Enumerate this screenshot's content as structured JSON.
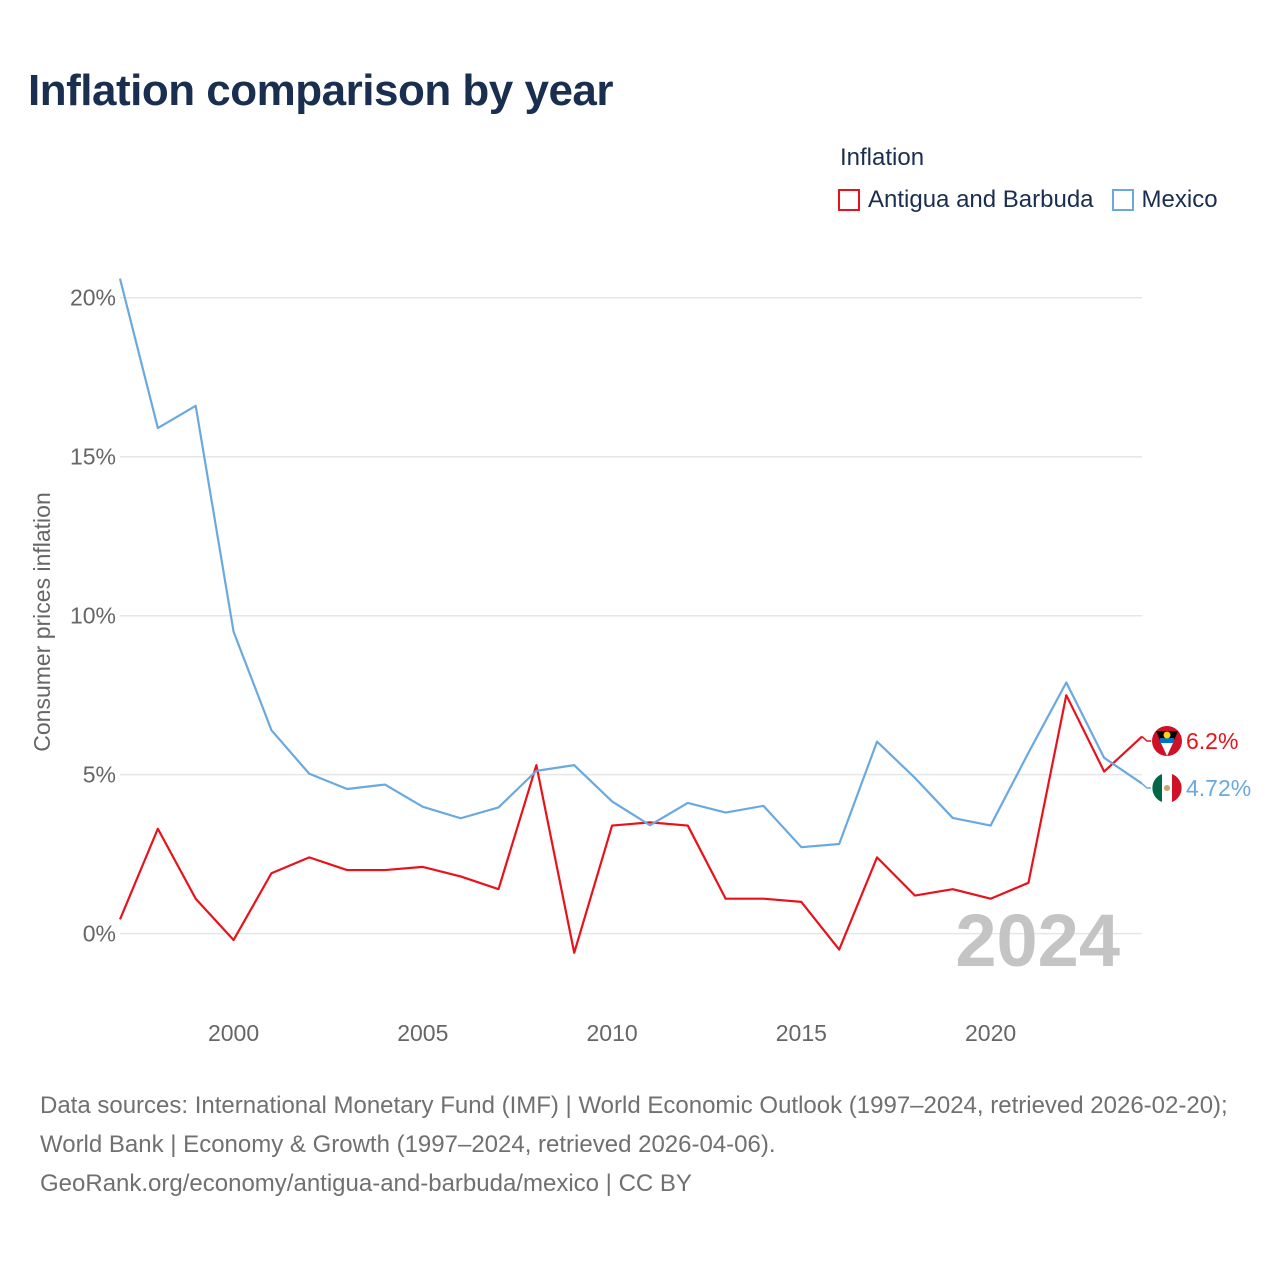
{
  "title": "Inflation comparison by year",
  "legend": {
    "title": "Inflation",
    "items": [
      {
        "label": "Antigua and Barbuda",
        "color": "#e8121a"
      },
      {
        "label": "Mexico",
        "color": "#6aa9e0"
      }
    ]
  },
  "footer": {
    "line1": "Data sources: International Monetary Fund (IMF) | World Economic Outlook (1997–2024, retrieved 2026-02-20); World Bank | Economy & Growth (1997–2024, retrieved 2026-04-06).",
    "line2": "GeoRank.org/economy/antigua-and-barbuda/mexico | CC BY"
  },
  "chart_data": {
    "type": "line",
    "title": "Inflation comparison by year",
    "xlabel": "",
    "ylabel": "Consumer prices inflation",
    "x": [
      1997,
      1998,
      1999,
      2000,
      2001,
      2002,
      2003,
      2004,
      2005,
      2006,
      2007,
      2008,
      2009,
      2010,
      2011,
      2012,
      2013,
      2014,
      2015,
      2016,
      2017,
      2018,
      2019,
      2020,
      2021,
      2022,
      2023,
      2024
    ],
    "xlim": [
      1997,
      2024
    ],
    "ylim": [
      -2.4,
      21.5
    ],
    "xticks": [
      2000,
      2005,
      2010,
      2015,
      2020
    ],
    "yticks": [
      0,
      5,
      10,
      15,
      20
    ],
    "ytick_labels": [
      "0%",
      "5%",
      "10%",
      "15%",
      "20%"
    ],
    "year_watermark": "2024",
    "grid": true,
    "series": [
      {
        "name": "Antigua and Barbuda",
        "color": "#e8121a",
        "end_label": "6.2%",
        "values": [
          0.45,
          3.3,
          1.1,
          -0.2,
          1.9,
          2.4,
          2.0,
          2.0,
          2.1,
          1.8,
          1.4,
          5.3,
          -0.6,
          3.4,
          3.5,
          3.4,
          1.1,
          1.1,
          1.0,
          -0.5,
          2.4,
          1.2,
          1.4,
          1.1,
          1.6,
          7.5,
          5.1,
          6.2
        ]
      },
      {
        "name": "Mexico",
        "color": "#6aa9e0",
        "end_label": "4.72%",
        "values": [
          20.6,
          15.9,
          16.6,
          9.5,
          6.4,
          5.03,
          4.55,
          4.69,
          3.99,
          3.63,
          3.97,
          5.12,
          5.3,
          4.16,
          3.41,
          4.11,
          3.81,
          4.02,
          2.72,
          2.82,
          6.04,
          4.9,
          3.64,
          3.4,
          5.69,
          7.9,
          5.53,
          4.72
        ]
      }
    ]
  }
}
